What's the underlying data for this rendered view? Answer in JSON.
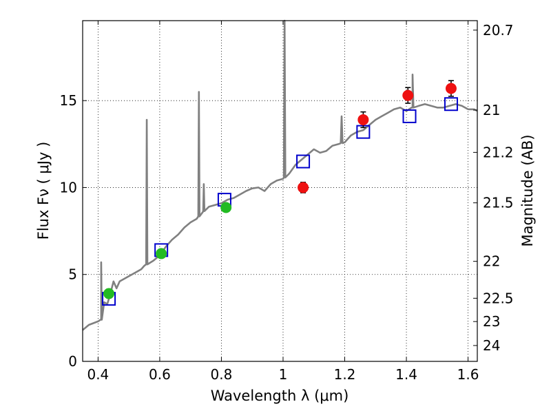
{
  "chart_data": {
    "type": "scatter",
    "xlabel": "Wavelength  λ (μm)",
    "ylabel": "Flux  Fν  ( μJy )",
    "y2label": "Magnitude (AB)",
    "xlim": [
      0.35,
      1.63
    ],
    "ylim": [
      0,
      19.6
    ],
    "x_ticks": [
      0.4,
      0.6,
      0.8,
      1.0,
      1.2,
      1.4,
      1.6
    ],
    "x_tick_labels": [
      "0.4",
      "0.6",
      "0.8",
      "1",
      "1.2",
      "1.4",
      "1.6"
    ],
    "y_ticks": [
      0,
      5,
      10,
      15
    ],
    "y_tick_labels": [
      "0",
      "5",
      "10",
      "15"
    ],
    "mag_ticks": [
      20.7,
      21,
      21.2,
      21.5,
      22,
      22.5,
      23,
      24
    ],
    "mag_tick_labels": [
      "20.7",
      "21",
      "21.2",
      "21.5",
      "22",
      "22.5",
      "23",
      "24"
    ],
    "grid": true,
    "colors": {
      "model": "#808080",
      "model_photometry": "#0000cc",
      "optical_points": "#22bb22",
      "nir_points": "#ee1111",
      "error_bars": "#000000"
    },
    "series": [
      {
        "kind": "line",
        "points": [
          [
            0.35,
            1.8
          ],
          [
            0.37,
            2.1
          ],
          [
            0.4,
            2.3
          ],
          [
            0.41,
            2.4
          ],
          [
            0.42,
            3.4
          ],
          [
            0.43,
            3.3
          ],
          [
            0.44,
            3.9
          ],
          [
            0.45,
            4.6
          ],
          [
            0.46,
            4.2
          ],
          [
            0.47,
            4.6
          ],
          [
            0.48,
            4.7
          ],
          [
            0.5,
            4.9
          ],
          [
            0.52,
            5.1
          ],
          [
            0.54,
            5.3
          ],
          [
            0.55,
            5.5
          ],
          [
            0.56,
            5.6
          ],
          [
            0.58,
            5.8
          ],
          [
            0.6,
            6.1
          ],
          [
            0.62,
            6.6
          ],
          [
            0.64,
            7.0
          ],
          [
            0.66,
            7.3
          ],
          [
            0.68,
            7.7
          ],
          [
            0.7,
            8.0
          ],
          [
            0.72,
            8.2
          ],
          [
            0.74,
            8.6
          ],
          [
            0.76,
            8.9
          ],
          [
            0.78,
            9.0
          ],
          [
            0.8,
            9.1
          ],
          [
            0.82,
            9.3
          ],
          [
            0.84,
            9.4
          ],
          [
            0.86,
            9.6
          ],
          [
            0.88,
            9.8
          ],
          [
            0.9,
            9.95
          ],
          [
            0.92,
            10.0
          ],
          [
            0.94,
            9.8
          ],
          [
            0.96,
            10.2
          ],
          [
            0.98,
            10.4
          ],
          [
            1.0,
            10.5
          ],
          [
            1.02,
            10.8
          ],
          [
            1.04,
            11.3
          ],
          [
            1.06,
            11.6
          ],
          [
            1.08,
            11.9
          ],
          [
            1.1,
            12.2
          ],
          [
            1.12,
            12.0
          ],
          [
            1.14,
            12.1
          ],
          [
            1.16,
            12.4
          ],
          [
            1.18,
            12.5
          ],
          [
            1.2,
            12.6
          ],
          [
            1.22,
            13.0
          ],
          [
            1.24,
            13.2
          ],
          [
            1.26,
            13.3
          ],
          [
            1.28,
            13.6
          ],
          [
            1.3,
            13.9
          ],
          [
            1.32,
            14.1
          ],
          [
            1.34,
            14.3
          ],
          [
            1.36,
            14.5
          ],
          [
            1.38,
            14.6
          ],
          [
            1.4,
            14.4
          ],
          [
            1.42,
            14.6
          ],
          [
            1.44,
            14.7
          ],
          [
            1.46,
            14.8
          ],
          [
            1.48,
            14.7
          ],
          [
            1.5,
            14.6
          ],
          [
            1.52,
            14.6
          ],
          [
            1.54,
            14.7
          ],
          [
            1.56,
            14.8
          ],
          [
            1.58,
            14.7
          ],
          [
            1.6,
            14.5
          ],
          [
            1.62,
            14.5
          ],
          [
            1.63,
            14.4
          ]
        ],
        "lines": [
          {
            "x": 0.41,
            "peak": 5.7,
            "width": 0.004
          },
          {
            "x": 0.558,
            "peak": 13.9,
            "width": 0.004
          },
          {
            "x": 0.727,
            "peak": 15.5,
            "width": 0.004
          },
          {
            "x": 0.743,
            "peak": 10.2,
            "width": 0.004
          },
          {
            "x": 1.005,
            "peak": 19.6,
            "width": 0.005
          },
          {
            "x": 1.19,
            "peak": 14.1,
            "width": 0.006
          },
          {
            "x": 1.42,
            "peak": 16.5,
            "width": 0.006
          }
        ]
      },
      {
        "kind": "square-markers",
        "x": [
          0.435,
          0.605,
          0.81,
          1.065,
          1.26,
          1.41,
          1.545
        ],
        "y": [
          3.6,
          6.4,
          9.3,
          11.5,
          13.2,
          14.1,
          14.8
        ]
      },
      {
        "kind": "circle-markers",
        "x": [
          0.435,
          0.605,
          0.815
        ],
        "y": [
          3.9,
          6.2,
          8.85
        ],
        "yerr": [
          0.25,
          0.25,
          0.2
        ]
      },
      {
        "kind": "circle-markers",
        "x": [
          1.065,
          1.26,
          1.405,
          1.545
        ],
        "y": [
          10.0,
          13.9,
          15.3,
          15.7
        ],
        "yerr": [
          0.3,
          0.45,
          0.45,
          0.45
        ]
      }
    ]
  }
}
